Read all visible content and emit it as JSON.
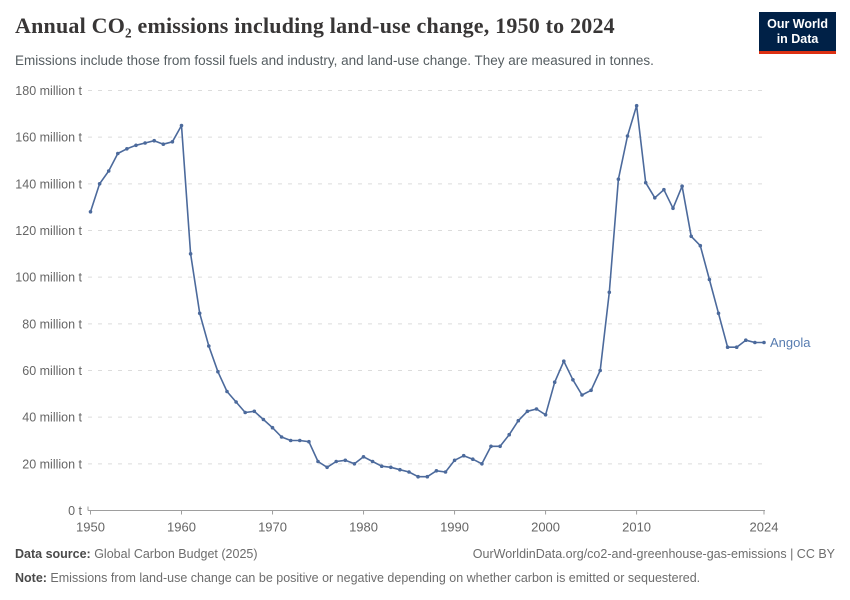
{
  "header": {
    "title": "Annual CO₂ emissions including land-use change, 1950 to 2024",
    "subtitle": "Emissions include those from fossil fuels and industry, and land-use change. They are measured in tonnes."
  },
  "logo": {
    "line1": "Our World",
    "line2": "in Data",
    "bg_color": "#002147",
    "accent_color": "#dc3012"
  },
  "chart_data": {
    "type": "line",
    "title": "Annual CO₂ emissions including land-use change, 1950 to 2024",
    "xlabel": "",
    "ylabel": "",
    "unit": "million t",
    "xlim": [
      1950,
      2024
    ],
    "ylim": [
      0,
      180
    ],
    "grid": true,
    "yticks": [
      0,
      20,
      40,
      60,
      80,
      100,
      120,
      140,
      160,
      180
    ],
    "ytick_format": {
      "zero": "0 t",
      "suffix": " million t"
    },
    "xticks": [
      1950,
      1960,
      1970,
      1980,
      1990,
      2000,
      2010,
      2024
    ],
    "legend_position": "end-of-line",
    "series": [
      {
        "name": "Angola",
        "color": "#4c6a9c",
        "label_color": "#577cb0",
        "x": [
          1950,
          1951,
          1952,
          1953,
          1954,
          1955,
          1956,
          1957,
          1958,
          1959,
          1960,
          1961,
          1962,
          1963,
          1964,
          1965,
          1966,
          1967,
          1968,
          1969,
          1970,
          1971,
          1972,
          1973,
          1974,
          1975,
          1976,
          1977,
          1978,
          1979,
          1980,
          1981,
          1982,
          1983,
          1984,
          1985,
          1986,
          1987,
          1988,
          1989,
          1990,
          1991,
          1992,
          1993,
          1994,
          1995,
          1996,
          1997,
          1998,
          1999,
          2000,
          2001,
          2002,
          2003,
          2004,
          2005,
          2006,
          2007,
          2008,
          2009,
          2010,
          2011,
          2012,
          2013,
          2014,
          2015,
          2016,
          2017,
          2018,
          2019,
          2020,
          2021,
          2022,
          2023,
          2024
        ],
        "values": [
          128,
          140,
          145.5,
          153,
          155,
          156.5,
          157.5,
          158.5,
          157,
          158,
          165,
          110,
          84.5,
          70.5,
          59.5,
          51,
          46.5,
          42,
          42.5,
          39,
          35.5,
          31.5,
          30,
          30,
          29.5,
          21,
          18.5,
          21,
          21.5,
          20,
          23,
          21,
          19,
          18.5,
          17.5,
          16.5,
          14.5,
          14.5,
          17,
          16.5,
          21.5,
          23.5,
          22,
          20,
          27.5,
          27.5,
          32.5,
          38.5,
          42.5,
          43.5,
          41,
          55,
          64,
          56,
          49.5,
          51.5,
          60,
          93.5,
          142,
          160.5,
          173.5,
          140.5,
          134,
          137.5,
          129.5,
          139,
          117.5,
          113.5,
          99,
          84.5,
          70,
          70,
          73,
          72,
          72
        ]
      }
    ],
    "colors": {
      "gridline": "#dcdcdc",
      "axis": "#9e9e9e",
      "tick_text": "#666666"
    }
  },
  "footer": {
    "source_label": "Data source:",
    "source_value": " Global Carbon Budget (2025)",
    "url_text": "OurWorldinData.org/co2-and-greenhouse-gas-emissions | CC BY",
    "note_label": "Note:",
    "note_text": " Emissions from land-use change can be positive or negative depending on whether carbon is emitted or sequestered."
  }
}
